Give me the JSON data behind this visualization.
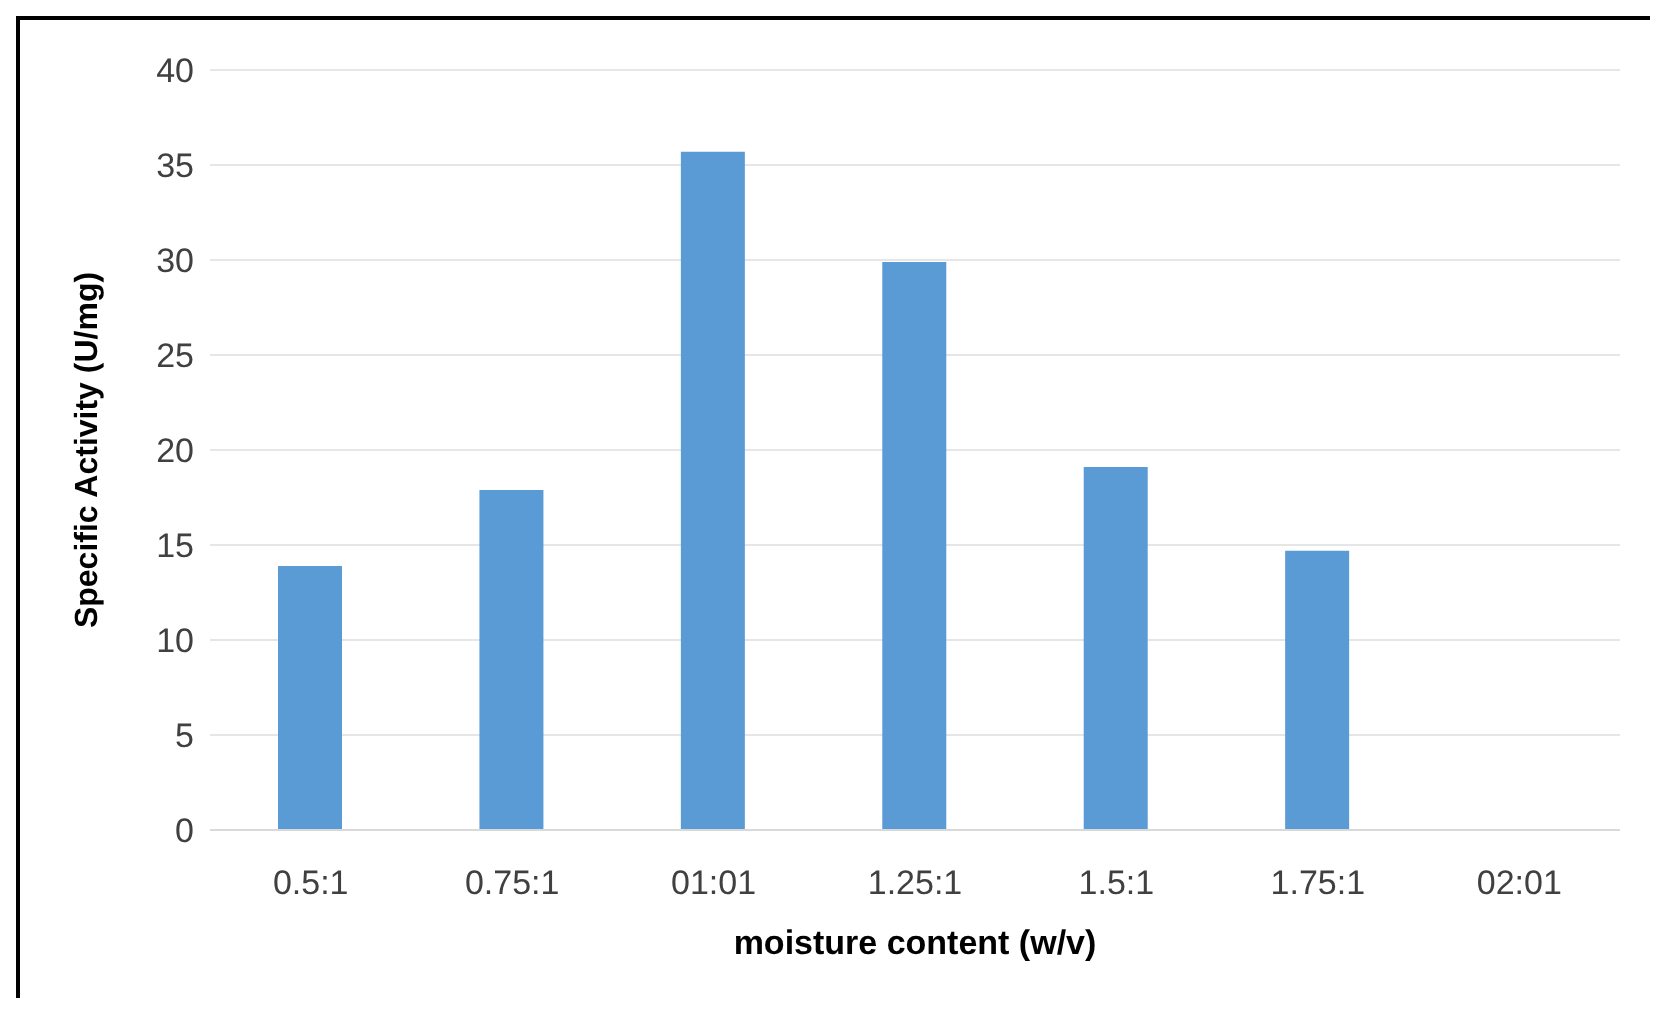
{
  "chart_data": {
    "type": "bar",
    "xlabel": "moisture content (w/v)",
    "ylabel": "Specific Activity (U/mg)",
    "categories": [
      "0.5:1",
      "0.75:1",
      "01:01",
      "1.25:1",
      "1.5:1",
      "1.75:1",
      "02:01"
    ],
    "values": [
      13.9,
      17.9,
      35.7,
      29.9,
      19.1,
      14.7,
      0
    ],
    "color": "#5b9bd5",
    "ylim": [
      0,
      40
    ],
    "yticks": [
      0,
      5,
      10,
      15,
      20,
      25,
      30,
      35,
      40
    ],
    "grid": "y"
  }
}
